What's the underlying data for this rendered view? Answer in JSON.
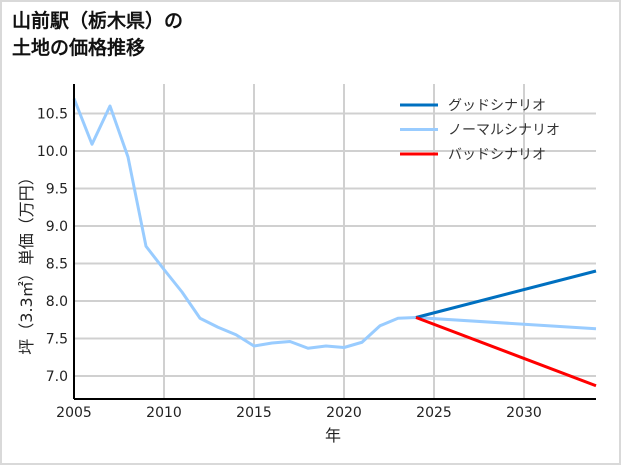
{
  "title_line1": "山前駅（栃木県）の",
  "title_line2": "土地の価格推移",
  "chart_data": {
    "type": "line",
    "title": "山前駅（栃木県）の土地の価格推移",
    "xlabel": "年",
    "ylabel": "坪（3.3㎡）単価（万円）",
    "xlim": [
      2005,
      2034
    ],
    "ylim": [
      6.67,
      10.87
    ],
    "x_ticks": [
      "2005",
      "2010",
      "2015",
      "2020",
      "2025",
      "2030"
    ],
    "y_ticks": [
      "7.0",
      "7.5",
      "8.0",
      "8.5",
      "9.0",
      "9.5",
      "10.0",
      "10.5"
    ],
    "grid": true,
    "legend_position": "upper right",
    "series": [
      {
        "name": "グッドシナリオ",
        "color": "#0070c0",
        "x": [
          2024,
          2034
        ],
        "values": [
          7.78,
          8.4
        ]
      },
      {
        "name": "ノーマルシナリオ",
        "color": "#99ccff",
        "x": [
          2005,
          2006,
          2007,
          2008,
          2009,
          2010,
          2011,
          2012,
          2013,
          2014,
          2015,
          2016,
          2017,
          2018,
          2019,
          2020,
          2021,
          2022,
          2023,
          2024,
          2034
        ],
        "values": [
          10.7,
          10.09,
          10.6,
          9.92,
          8.73,
          8.42,
          8.12,
          7.77,
          7.65,
          7.55,
          7.4,
          7.44,
          7.46,
          7.37,
          7.4,
          7.38,
          7.45,
          7.67,
          7.77,
          7.78,
          7.63
        ]
      },
      {
        "name": "バッドシナリオ",
        "color": "#ff0000",
        "x": [
          2024,
          2034
        ],
        "values": [
          7.78,
          6.87
        ]
      }
    ]
  }
}
